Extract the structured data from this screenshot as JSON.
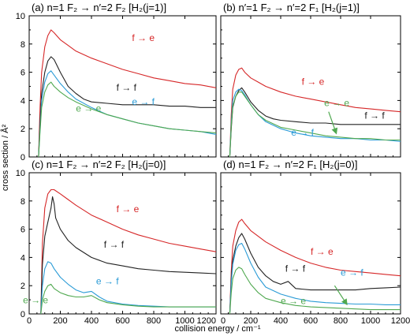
{
  "figure": {
    "ylabel": "cross section / Å²",
    "xlabel": "collision energy / cm⁻¹"
  },
  "colors": {
    "f_to_e": "#d62728",
    "f_to_f": "#222222",
    "e_to_f": "#2a9bd6",
    "e_to_e": "#4fa84f"
  },
  "chart_data": [
    {
      "type": "line",
      "title": "(a)  n=1 F₂ → n′=2 F₂ [H₂(j=1)]",
      "xlim": [
        0,
        1200
      ],
      "ylim": [
        0,
        10
      ],
      "xticks": [
        "0",
        "200",
        "400",
        "600",
        "800",
        "1000",
        "1200"
      ],
      "yticks": [
        "0",
        "2",
        "4",
        "6",
        "8",
        "10"
      ],
      "series": [
        {
          "name": "f → e",
          "color_key": "f_to_e",
          "x": [
            60,
            70,
            80,
            100,
            120,
            140,
            160,
            200,
            250,
            300,
            400,
            500,
            600,
            700,
            800,
            900,
            1000,
            1100,
            1200
          ],
          "y": [
            0,
            3.5,
            6.0,
            7.8,
            8.6,
            9.0,
            8.8,
            8.3,
            7.9,
            7.5,
            7.0,
            6.6,
            6.2,
            5.9,
            5.6,
            5.4,
            5.2,
            5.1,
            4.9
          ]
        },
        {
          "name": "f → f",
          "color_key": "f_to_f",
          "x": [
            60,
            70,
            80,
            100,
            120,
            140,
            160,
            200,
            250,
            300,
            350,
            400,
            500,
            600,
            700,
            800,
            900,
            1000,
            1100,
            1200
          ],
          "y": [
            0,
            2.5,
            4.5,
            6.0,
            6.8,
            7.1,
            6.9,
            6.0,
            5.0,
            4.5,
            4.1,
            3.9,
            3.8,
            3.7,
            3.7,
            3.7,
            3.6,
            3.6,
            3.5,
            3.5
          ]
        },
        {
          "name": "e → f",
          "color_key": "e_to_f",
          "x": [
            60,
            70,
            80,
            100,
            120,
            140,
            160,
            200,
            250,
            300,
            400,
            500,
            600,
            700,
            800,
            900,
            1000,
            1100,
            1200
          ],
          "y": [
            0,
            2.0,
            4.0,
            5.3,
            5.9,
            6.1,
            5.8,
            5.2,
            4.6,
            4.1,
            3.5,
            3.0,
            2.7,
            2.4,
            2.2,
            2.0,
            1.9,
            1.8,
            1.6
          ]
        },
        {
          "name": "e → e",
          "color_key": "e_to_e",
          "x": [
            60,
            70,
            80,
            100,
            120,
            140,
            160,
            200,
            250,
            300,
            400,
            500,
            600,
            700,
            800,
            900,
            1000,
            1100,
            1200
          ],
          "y": [
            0,
            1.8,
            3.5,
            4.6,
            5.1,
            5.3,
            5.0,
            4.6,
            4.2,
            3.9,
            3.4,
            3.0,
            2.7,
            2.4,
            2.2,
            2.0,
            1.9,
            1.8,
            1.7
          ]
        }
      ],
      "labels": [
        {
          "text": "f → e",
          "color_key": "f_to_e",
          "x": 660,
          "y": 8.2
        },
        {
          "text": "f → f",
          "color_key": "f_to_f",
          "x": 560,
          "y": 4.7
        },
        {
          "text": "e → f",
          "color_key": "e_to_f",
          "x": 660,
          "y": 3.7
        },
        {
          "text": "e → e",
          "color_key": "e_to_e",
          "x": 300,
          "y": 3.2
        }
      ]
    },
    {
      "type": "line",
      "title": "(b)  n′=1 F₂ → n′=2 F₁ [H₂(j=1)]",
      "xlim": [
        0,
        1200
      ],
      "ylim": [
        0,
        10
      ],
      "xticks": [
        "0",
        "200",
        "400",
        "600",
        "800",
        "1000",
        "1200"
      ],
      "yticks": [],
      "series": [
        {
          "name": "f → e",
          "color_key": "f_to_e",
          "x": [
            60,
            70,
            80,
            100,
            120,
            140,
            160,
            200,
            250,
            300,
            400,
            500,
            600,
            700,
            800,
            900,
            1000,
            1100,
            1200
          ],
          "y": [
            0,
            3.0,
            4.8,
            5.8,
            6.2,
            6.3,
            6.0,
            5.6,
            5.3,
            5.0,
            4.6,
            4.3,
            4.1,
            3.9,
            3.7,
            3.5,
            3.4,
            3.3,
            3.2
          ]
        },
        {
          "name": "f → f",
          "color_key": "f_to_f",
          "x": [
            60,
            70,
            80,
            100,
            120,
            140,
            160,
            200,
            250,
            300,
            350,
            400,
            500,
            600,
            700,
            800,
            900,
            1000,
            1100,
            1200
          ],
          "y": [
            0,
            2.0,
            3.5,
            4.3,
            4.7,
            4.9,
            4.6,
            3.9,
            3.3,
            2.9,
            2.7,
            2.6,
            2.5,
            2.4,
            2.4,
            2.3,
            2.3,
            2.3,
            2.3,
            2.3
          ]
        },
        {
          "name": "e → f",
          "color_key": "e_to_f",
          "x": [
            60,
            70,
            80,
            100,
            120,
            140,
            160,
            200,
            250,
            300,
            400,
            500,
            600,
            700,
            800,
            900,
            1000,
            1100,
            1200
          ],
          "y": [
            0,
            2.5,
            4.0,
            4.6,
            4.8,
            4.7,
            4.4,
            3.7,
            3.0,
            2.5,
            2.0,
            1.7,
            1.5,
            1.4,
            1.3,
            1.3,
            1.2,
            1.2,
            1.1
          ]
        },
        {
          "name": "e → e",
          "color_key": "e_to_e",
          "x": [
            60,
            70,
            80,
            100,
            120,
            140,
            160,
            200,
            250,
            300,
            400,
            500,
            600,
            700,
            800,
            900,
            1000,
            1100,
            1200
          ],
          "y": [
            0,
            2.2,
            3.6,
            4.3,
            4.6,
            4.6,
            4.3,
            3.7,
            3.0,
            2.6,
            2.1,
            1.9,
            1.7,
            1.5,
            1.4,
            1.3,
            1.3,
            1.2,
            1.2
          ]
        }
      ],
      "labels": [
        {
          "text": "f → e",
          "color_key": "f_to_e",
          "x": 540,
          "y": 5.1
        },
        {
          "text": "e → e",
          "color_key": "e_to_e",
          "x": 690,
          "y": 3.6
        },
        {
          "text": "f → f",
          "color_key": "f_to_f",
          "x": 960,
          "y": 2.7
        },
        {
          "text": "e → f",
          "color_key": "e_to_f",
          "x": 470,
          "y": 1.5
        }
      ],
      "arrows": [
        {
          "color_key": "e_to_e",
          "from": [
            720,
            3.2
          ],
          "to": [
            770,
            1.7
          ]
        }
      ]
    },
    {
      "type": "line",
      "title": "(c)  n=1 F₂ → n′=2 F₂ [H₂(j=0)]",
      "xlim": [
        0,
        1200
      ],
      "ylim": [
        0,
        10
      ],
      "xticks": [
        "0",
        "200",
        "400",
        "600",
        "800",
        "1000",
        "1200"
      ],
      "yticks": [
        "0",
        "2",
        "4",
        "6",
        "8",
        "10"
      ],
      "series": [
        {
          "name": "f → e",
          "color_key": "f_to_e",
          "x": [
            75,
            85,
            100,
            120,
            140,
            160,
            200,
            250,
            300,
            400,
            500,
            600,
            700,
            800,
            900,
            1000,
            1100,
            1200
          ],
          "y": [
            0,
            5.0,
            7.5,
            8.5,
            8.8,
            8.8,
            8.5,
            8.1,
            7.7,
            7.0,
            6.5,
            6.0,
            5.6,
            5.3,
            5.0,
            4.8,
            4.6,
            4.4
          ]
        },
        {
          "name": "f → f",
          "color_key": "f_to_f",
          "x": [
            75,
            85,
            100,
            120,
            140,
            150,
            160,
            170,
            200,
            250,
            300,
            400,
            500,
            600,
            700,
            800,
            900,
            1000,
            1100,
            1200
          ],
          "y": [
            0,
            3.5,
            5.5,
            6.5,
            7.5,
            8.3,
            7.8,
            6.8,
            6.0,
            5.2,
            4.7,
            4.0,
            3.6,
            3.4,
            3.2,
            3.1,
            3.0,
            2.95,
            2.9,
            2.85
          ]
        },
        {
          "name": "e → f",
          "color_key": "e_to_f",
          "x": [
            75,
            85,
            100,
            120,
            140,
            160,
            200,
            250,
            300,
            350,
            400,
            450,
            500,
            600,
            700,
            800,
            900,
            1000,
            1100,
            1200
          ],
          "y": [
            0,
            2.0,
            3.2,
            3.7,
            3.6,
            3.2,
            2.6,
            2.1,
            1.7,
            1.5,
            1.6,
            1.2,
            0.9,
            0.7,
            0.6,
            0.55,
            0.5,
            0.5,
            0.5,
            0.5
          ]
        },
        {
          "name": "e → e",
          "color_key": "e_to_e",
          "x": [
            75,
            85,
            100,
            120,
            140,
            160,
            200,
            250,
            300,
            350,
            400,
            450,
            500,
            600,
            700,
            800,
            900,
            1000,
            1100,
            1200
          ],
          "y": [
            0,
            1.0,
            1.6,
            2.0,
            2.1,
            1.8,
            1.5,
            1.3,
            1.2,
            1.2,
            1.3,
            1.0,
            0.8,
            0.65,
            0.55,
            0.5,
            0.5,
            0.5,
            0.5,
            0.5
          ]
        }
      ],
      "labels": [
        {
          "text": "f → e",
          "color_key": "f_to_e",
          "x": 560,
          "y": 7.2
        },
        {
          "text": "f → f",
          "color_key": "f_to_f",
          "x": 480,
          "y": 4.7
        },
        {
          "text": "e → f",
          "color_key": "e_to_f",
          "x": 430,
          "y": 2.1
        },
        {
          "text": "e → e",
          "color_key": "e_to_e",
          "x": -40,
          "y": 0.75
        }
      ]
    },
    {
      "type": "line",
      "title": "(d)  n=1 F₂ → n′=2 F₁ [H₂(j=0)]",
      "xlim": [
        0,
        1200
      ],
      "ylim": [
        0,
        10
      ],
      "xticks": [
        "0",
        "200",
        "400",
        "600",
        "800",
        "1000",
        "1200"
      ],
      "yticks": [],
      "series": [
        {
          "name": "f → e",
          "color_key": "f_to_e",
          "x": [
            60,
            70,
            80,
            100,
            120,
            140,
            160,
            200,
            250,
            300,
            400,
            500,
            600,
            700,
            800,
            900,
            1000,
            1100,
            1200
          ],
          "y": [
            0,
            3.0,
            4.8,
            5.9,
            6.5,
            6.7,
            6.4,
            5.9,
            5.5,
            5.1,
            4.5,
            4.0,
            3.6,
            3.3,
            3.1,
            3.0,
            2.9,
            2.8,
            2.7
          ]
        },
        {
          "name": "f → f",
          "color_key": "f_to_f",
          "x": [
            60,
            70,
            80,
            100,
            120,
            140,
            160,
            200,
            250,
            300,
            350,
            400,
            450,
            500,
            600,
            700,
            800,
            900,
            1000,
            1100,
            1200
          ],
          "y": [
            0,
            2.5,
            3.8,
            4.8,
            5.4,
            5.7,
            5.3,
            4.3,
            3.3,
            2.7,
            2.3,
            2.1,
            2.3,
            1.8,
            1.7,
            1.7,
            1.7,
            1.7,
            1.8,
            1.85,
            1.9
          ]
        },
        {
          "name": "e → f",
          "color_key": "e_to_f",
          "x": [
            60,
            70,
            80,
            100,
            120,
            140,
            160,
            200,
            250,
            300,
            400,
            500,
            600,
            700,
            800,
            900,
            1000,
            1100,
            1200
          ],
          "y": [
            0,
            2.2,
            3.5,
            4.5,
            4.9,
            5.0,
            4.6,
            3.6,
            2.6,
            1.9,
            1.4,
            1.1,
            0.9,
            0.8,
            0.75,
            0.7,
            0.7,
            0.65,
            0.65
          ]
        },
        {
          "name": "e → e",
          "color_key": "e_to_e",
          "x": [
            60,
            70,
            80,
            100,
            120,
            140,
            160,
            200,
            250,
            300,
            400,
            500,
            600,
            700,
            800,
            900,
            1000,
            1100,
            1200
          ],
          "y": [
            0,
            1.5,
            2.5,
            3.1,
            3.3,
            3.2,
            2.8,
            2.1,
            1.5,
            1.1,
            0.8,
            0.6,
            0.5,
            0.45,
            0.4,
            0.35,
            0.3,
            0.3,
            0.3
          ]
        }
      ],
      "labels": [
        {
          "text": "f → e",
          "color_key": "f_to_e",
          "x": 600,
          "y": 4.2
        },
        {
          "text": "f → f",
          "color_key": "f_to_f",
          "x": 430,
          "y": 3.0
        },
        {
          "text": "e → f",
          "color_key": "e_to_f",
          "x": 800,
          "y": 2.7
        },
        {
          "text": "e → e",
          "color_key": "e_to_e",
          "x": 400,
          "y": 0.7
        }
      ],
      "arrows": [
        {
          "color_key": "e_to_e",
          "from": [
            760,
            2.0
          ],
          "to": [
            840,
            0.7
          ]
        }
      ]
    }
  ]
}
